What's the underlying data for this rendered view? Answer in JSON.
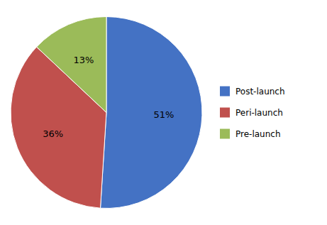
{
  "chart_data": {
    "type": "pie",
    "categories": [
      "Post-launch",
      "Peri-launch",
      "Pre-launch"
    ],
    "values": [
      51,
      36,
      13
    ],
    "value_labels": [
      "51%",
      "36%",
      "13%"
    ],
    "colors": [
      "#4472C4",
      "#C0504D",
      "#9BBB59"
    ],
    "data_labels": true,
    "legend": "right"
  }
}
